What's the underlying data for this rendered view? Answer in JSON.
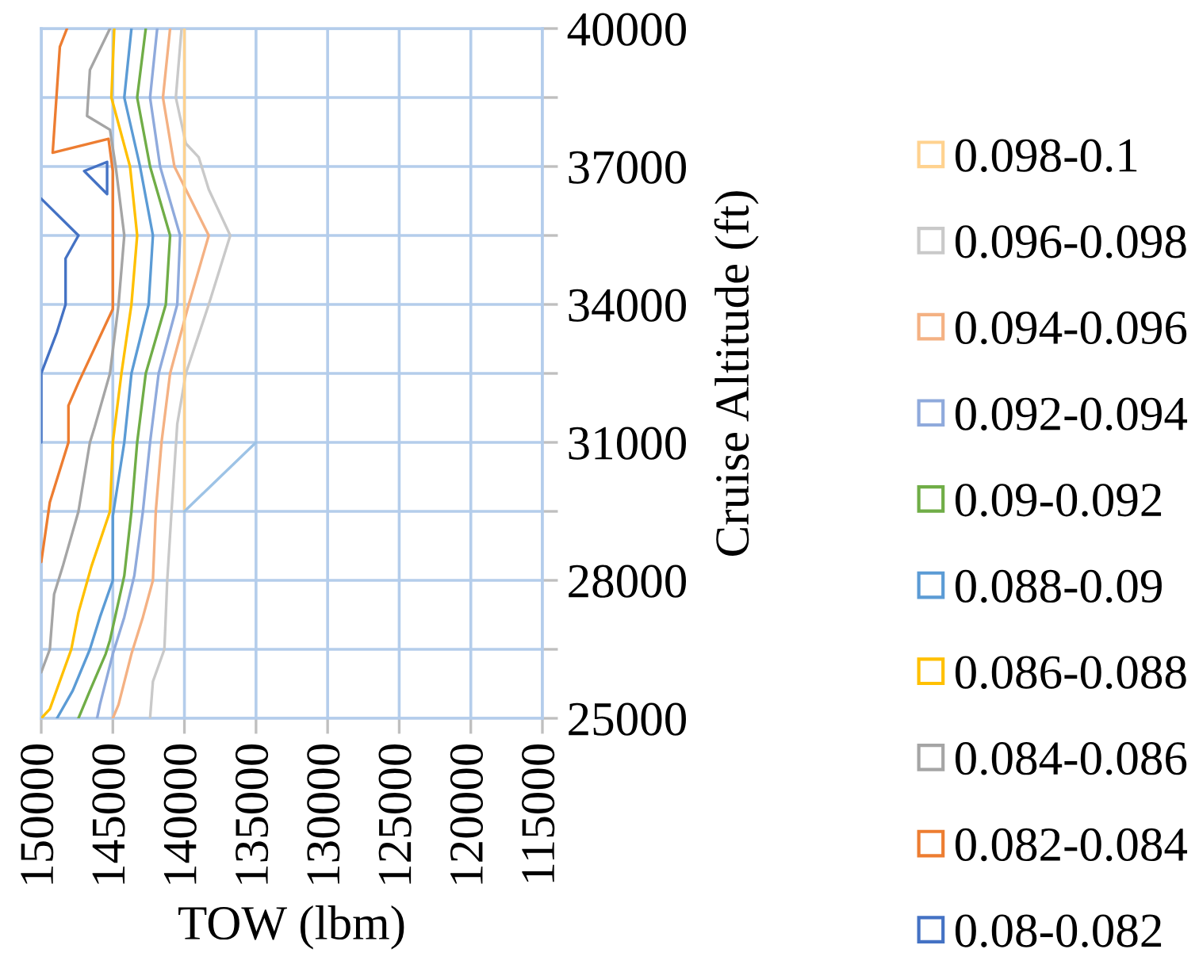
{
  "chart_data": {
    "type": "line",
    "xlabel": "TOW (lbm)",
    "ylabel": "Cruise Altitude (ft)",
    "xlim": [
      150000,
      115000
    ],
    "xticks": [
      150000,
      145000,
      140000,
      135000,
      130000,
      125000,
      120000,
      115000
    ],
    "ylim": [
      25000,
      40000
    ],
    "yticks": [
      25000,
      {
        "value": 26500,
        "label": null
      },
      28000,
      {
        "value": 29500,
        "label": null
      },
      31000,
      {
        "value": 32500,
        "label": null
      },
      34000,
      {
        "value": 35500,
        "label": null
      },
      37000,
      {
        "value": 38500,
        "label": null
      },
      40000
    ],
    "grid": true,
    "legend": "right",
    "series": [
      {
        "name": "0.08-0.082",
        "color": "#4472c4",
        "x": [
          150000,
          147400,
          148300,
          148300,
          148900,
          150000,
          150000,
          null,
          147000,
          145400,
          145400,
          null,
          145400,
          147000
        ],
        "values": [
          36300,
          35500,
          35000,
          34000,
          33400,
          32500,
          31000,
          null,
          36900,
          37100,
          36400,
          null,
          36400,
          36900
        ]
      },
      {
        "name": "0.082-0.084",
        "color": "#ed7d31",
        "x": [
          148200,
          148700,
          149200,
          145300,
          145000,
          145000,
          147400,
          148100,
          148100,
          149400,
          150000
        ],
        "values": [
          40000,
          39600,
          37300,
          37600,
          36900,
          33900,
          32300,
          31800,
          31000,
          29700,
          28400
        ]
      },
      {
        "name": "0.084-0.086",
        "color": "#a5a5a5",
        "x": [
          145200,
          146600,
          146800,
          145200,
          144800,
          144200,
          144600,
          145200,
          146300,
          146600,
          147400,
          148500,
          149100,
          149400,
          150000
        ],
        "values": [
          40000,
          39100,
          38100,
          37800,
          37000,
          35500,
          34000,
          32500,
          31300,
          31000,
          29500,
          28300,
          27700,
          26500,
          26000
        ]
      },
      {
        "name": "0.086-0.088",
        "color": "#ffc000",
        "x": [
          144900,
          145100,
          143800,
          143300,
          143700,
          144400,
          145000,
          145200,
          146500,
          147400,
          147900,
          149400,
          150000
        ],
        "values": [
          40000,
          38500,
          37000,
          35500,
          34000,
          32500,
          31000,
          29500,
          28300,
          27300,
          26500,
          25200,
          25000
        ]
      },
      {
        "name": "0.088-0.09",
        "color": "#5b9bd5",
        "x": [
          143700,
          144200,
          143100,
          142200,
          142500,
          143700,
          144200,
          145000,
          145000,
          145900,
          146600,
          147800,
          148900
        ],
        "values": [
          40000,
          38500,
          37000,
          35500,
          34000,
          32500,
          31000,
          29400,
          28000,
          27200,
          26500,
          25600,
          25000
        ]
      },
      {
        "name": "0.09-0.092",
        "color": "#70ad47",
        "x": [
          142700,
          143300,
          142400,
          141000,
          141300,
          142700,
          143300,
          143700,
          144200,
          145200,
          145500,
          146600,
          147400
        ],
        "values": [
          40000,
          38500,
          37000,
          35500,
          34000,
          32500,
          31000,
          29500,
          28100,
          26700,
          26400,
          25600,
          25000
        ]
      },
      {
        "name": "0.092-0.094",
        "color": "#8faadc",
        "x": [
          141900,
          142400,
          141700,
          140300,
          140500,
          141800,
          142400,
          142900,
          143500,
          144200,
          145000,
          145900,
          146100
        ],
        "values": [
          40000,
          38500,
          37000,
          35500,
          34000,
          32500,
          31000,
          29500,
          28100,
          27200,
          26400,
          25300,
          25000
        ]
      },
      {
        "name": "0.094-0.096",
        "color": "#f4b183",
        "x": [
          141000,
          141500,
          140700,
          139900,
          138300,
          139700,
          141000,
          141600,
          142000,
          142200,
          142900,
          143700,
          144600,
          145000
        ],
        "values": [
          40000,
          38500,
          37000,
          36500,
          35500,
          34000,
          32500,
          31000,
          29500,
          28000,
          27200,
          26400,
          25300,
          25000
        ]
      },
      {
        "name": "0.096-0.098",
        "color": "#c9c9c9",
        "x": [
          140200,
          140600,
          139900,
          139000,
          138300,
          136800,
          138300,
          139900,
          140500,
          140900,
          141200,
          141400,
          142200,
          142400
        ],
        "values": [
          40000,
          38500,
          37500,
          37200,
          36500,
          35500,
          34000,
          32500,
          31400,
          29500,
          28000,
          26500,
          25800,
          25000
        ]
      },
      {
        "name": "0.098-0.1",
        "color": "#ffd28f",
        "x": [
          140000,
          140000
        ],
        "values": [
          40000,
          29500
        ]
      },
      {
        "color": "#9dc3e6",
        "x": [
          140000,
          135000
        ],
        "values": [
          29500,
          31000
        ]
      }
    ]
  }
}
